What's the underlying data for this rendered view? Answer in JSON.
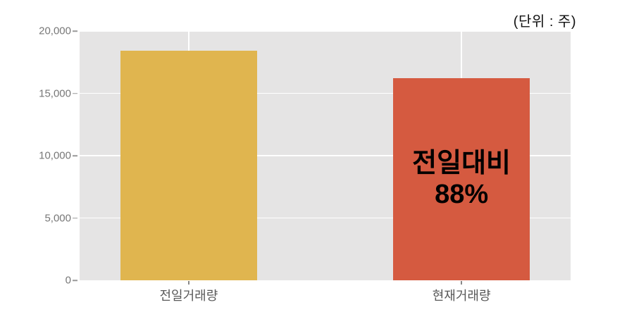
{
  "unit_label": "(단위 : 주)",
  "chart_data": {
    "type": "bar",
    "title": "",
    "xlabel": "",
    "ylabel": "",
    "unit_note": "(단위 : 주)",
    "categories": [
      "전일거래량",
      "현재거래량"
    ],
    "values": [
      18400,
      16200
    ],
    "bar_colors": [
      "#e0b54f",
      "#d55a40"
    ],
    "bar_annotation": {
      "bar_index": 1,
      "lines": [
        "전일대비",
        "88%"
      ],
      "color": "#000000"
    },
    "ylim": [
      0,
      20000
    ],
    "yticks": [
      0,
      5000,
      10000,
      15000,
      20000
    ],
    "ytick_labels": [
      "0",
      "5,000",
      "10,000",
      "15,000",
      "20,000"
    ],
    "grid": true,
    "legend": "none",
    "plot_background": "#e5e4e4",
    "gridline_color": "#ffffff"
  }
}
